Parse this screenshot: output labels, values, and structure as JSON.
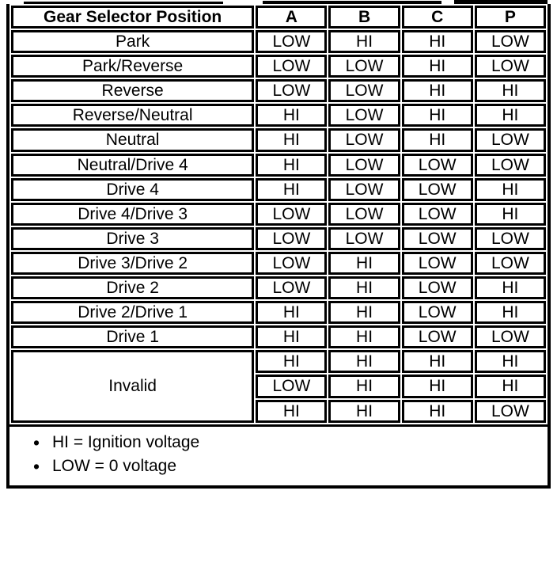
{
  "table": {
    "header": {
      "position_label": "Gear Selector Position",
      "columns": [
        "A",
        "B",
        "C",
        "P"
      ]
    },
    "rows": [
      {
        "label": "Park",
        "values": [
          "LOW",
          "HI",
          "HI",
          "LOW"
        ]
      },
      {
        "label": "Park/Reverse",
        "values": [
          "LOW",
          "LOW",
          "HI",
          "LOW"
        ]
      },
      {
        "label": "Reverse",
        "values": [
          "LOW",
          "LOW",
          "HI",
          "HI"
        ]
      },
      {
        "label": "Reverse/Neutral",
        "values": [
          "HI",
          "LOW",
          "HI",
          "HI"
        ]
      },
      {
        "label": "Neutral",
        "values": [
          "HI",
          "LOW",
          "HI",
          "LOW"
        ]
      },
      {
        "label": "Neutral/Drive 4",
        "values": [
          "HI",
          "LOW",
          "LOW",
          "LOW"
        ]
      },
      {
        "label": "Drive 4",
        "values": [
          "HI",
          "LOW",
          "LOW",
          "HI"
        ]
      },
      {
        "label": "Drive 4/Drive 3",
        "values": [
          "LOW",
          "LOW",
          "LOW",
          "HI"
        ]
      },
      {
        "label": "Drive 3",
        "values": [
          "LOW",
          "LOW",
          "LOW",
          "LOW"
        ]
      },
      {
        "label": "Drive 3/Drive 2",
        "values": [
          "LOW",
          "HI",
          "LOW",
          "LOW"
        ]
      },
      {
        "label": "Drive 2",
        "values": [
          "LOW",
          "HI",
          "LOW",
          "HI"
        ]
      },
      {
        "label": "Drive 2/Drive 1",
        "values": [
          "HI",
          "HI",
          "LOW",
          "HI"
        ]
      },
      {
        "label": "Drive 1",
        "values": [
          "HI",
          "HI",
          "LOW",
          "LOW"
        ]
      }
    ],
    "invalid_group": {
      "label": "Invalid",
      "value_rows": [
        [
          "HI",
          "HI",
          "HI",
          "HI"
        ],
        [
          "LOW",
          "HI",
          "HI",
          "HI"
        ],
        [
          "HI",
          "HI",
          "HI",
          "LOW"
        ]
      ]
    }
  },
  "notes": {
    "bullet": "•",
    "items": [
      "HI = Ignition voltage",
      "LOW = 0 voltage"
    ]
  },
  "colors": {
    "ink": "#000000",
    "paper": "#ffffff"
  }
}
